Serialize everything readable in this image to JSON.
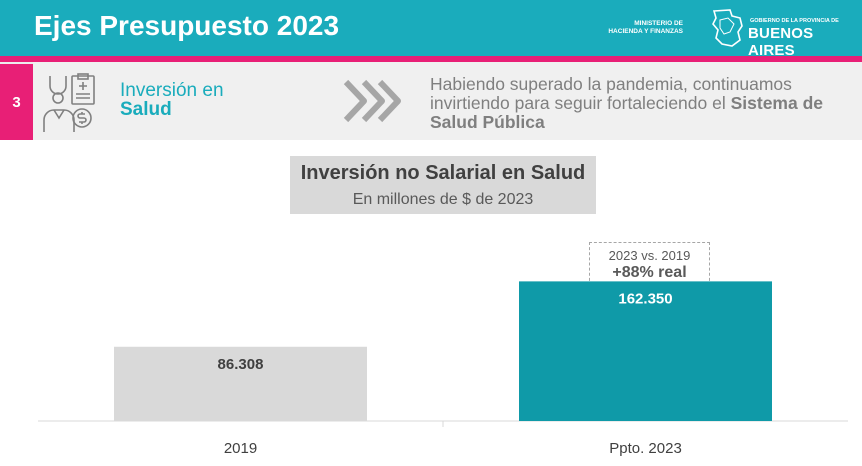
{
  "header": {
    "title": "Ejes Presupuesto 2023",
    "ministry_line1": "MINISTERIO DE",
    "ministry_line2": "HACIENDA Y FINANZAS",
    "gov_small": "GOBIERNO DE LA PROVINCIA DE",
    "gov_big": "BUENOS AIRES"
  },
  "section": {
    "number": "3",
    "title_line1": "Inversión en",
    "title_line2": "Salud",
    "description_plain": "Habiendo superado la pandemia, continuamos invirtiendo para seguir fortaleciendo el ",
    "description_bold": "Sistema de Salud Pública"
  },
  "annotation": {
    "line1": "2023 vs. 2019",
    "line2": "+88% real"
  },
  "colors": {
    "header_bg": "#1aacbc",
    "accent_pink": "#e81f76",
    "bar_2019": "#d9d9d9",
    "bar_2023": "#0f9aa8"
  },
  "chart_data": {
    "type": "bar",
    "title": "Inversión no Salarial en Salud",
    "subtitle": "En millones de $ de 2023",
    "categories": [
      "2019",
      "Ppto. 2023"
    ],
    "values": [
      86308,
      162350
    ],
    "value_labels": [
      "86.308",
      "162.350"
    ],
    "bar_colors": [
      "#d9d9d9",
      "#0f9aa8"
    ],
    "label_colors": [
      "#404040",
      "#ffffff"
    ],
    "ylim": [
      0,
      200000
    ],
    "grid": false,
    "legend": "none"
  }
}
